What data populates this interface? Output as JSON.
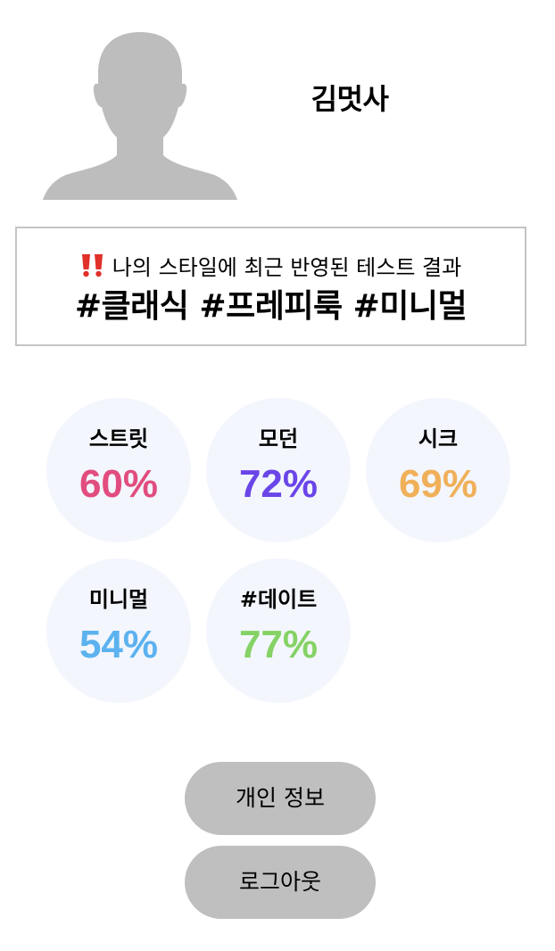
{
  "profile": {
    "avatar_icon": "user-silhouette-icon",
    "name": "김멋사"
  },
  "result": {
    "alert_icon": "double-exclamation-icon",
    "heading": "나의 스타일에 최근 반영된 테스트 결과",
    "tags": "#클래식 #프레피룩 #미니멀"
  },
  "styles": [
    {
      "label": "스트릿",
      "value": "60%",
      "color": "#e14d7e"
    },
    {
      "label": "모던",
      "value": "72%",
      "color": "#6a45e8"
    },
    {
      "label": "시크",
      "value": "69%",
      "color": "#f0b05a"
    },
    {
      "label": "미니멀",
      "value": "54%",
      "color": "#5cb2ef"
    },
    {
      "label": "#데이트",
      "value": "77%",
      "color": "#85d265"
    }
  ],
  "buttons": {
    "personal_info": "개인 정보",
    "logout": "로그아웃"
  },
  "colors": {
    "avatar": "#bdbdbd",
    "circle_bg": "#f3f6fd",
    "button_bg": "#bfbfbf",
    "box_border": "#c4c4c4",
    "alert": "#e0312a"
  }
}
